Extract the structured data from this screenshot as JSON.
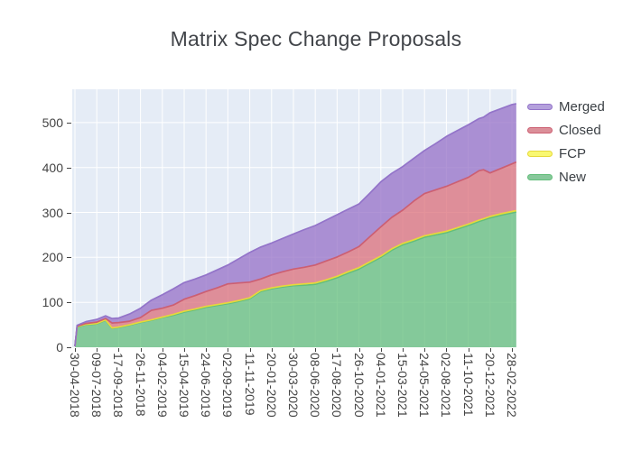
{
  "title": "Matrix Spec Change Proposals",
  "chart_data": {
    "type": "area",
    "stacked": true,
    "title": "Matrix Spec Change Proposals",
    "xlabel": "",
    "ylabel": "",
    "grid": true,
    "legend_position": "right",
    "plot_bg": "#e5ecf6",
    "grid_color": "#ffffff",
    "text_color": "#444444",
    "x_dates": [
      "30-04-2018",
      "07-05-2018",
      "04-06-2018",
      "09-07-2018",
      "06-08-2018",
      "27-08-2018",
      "17-09-2018",
      "22-10-2018",
      "26-11-2018",
      "31-12-2018",
      "04-02-2019",
      "11-03-2019",
      "15-04-2019",
      "20-05-2019",
      "24-06-2019",
      "29-07-2019",
      "02-09-2019",
      "07-10-2019",
      "11-11-2019",
      "16-12-2019",
      "20-01-2020",
      "24-02-2020",
      "30-03-2020",
      "04-05-2020",
      "08-06-2020",
      "13-07-2020",
      "17-08-2020",
      "21-09-2020",
      "26-10-2020",
      "30-11-2020",
      "04-01-2021",
      "08-02-2021",
      "15-03-2021",
      "19-04-2021",
      "24-05-2021",
      "28-06-2021",
      "02-08-2021",
      "06-09-2021",
      "11-10-2021",
      "15-11-2021",
      "29-11-2021",
      "20-12-2021",
      "24-01-2022",
      "28-02-2022",
      "14-03-2022"
    ],
    "series": [
      {
        "name": "New",
        "values": [
          2,
          45,
          50,
          52,
          60,
          42,
          44,
          49,
          55,
          60,
          66,
          71,
          78,
          83,
          89,
          93,
          97,
          102,
          108,
          124,
          130,
          134,
          137,
          138,
          140,
          147,
          155,
          165,
          174,
          187,
          200,
          216,
          228,
          236,
          245,
          250,
          255,
          263,
          271,
          280,
          283,
          288,
          294,
          299,
          301
        ],
        "fill": "rgba(99,190,123,0.75)",
        "line": "#63be7b",
        "swatch": "#87c89b"
      },
      {
        "name": "FCP",
        "values": [
          0,
          1,
          1,
          1,
          1,
          1,
          1,
          1,
          1,
          1,
          1,
          2,
          2,
          2,
          2,
          2,
          2,
          2,
          2,
          2,
          2,
          2,
          2,
          3,
          3,
          3,
          3,
          3,
          3,
          3,
          3,
          3,
          3,
          3,
          3,
          3,
          3,
          3,
          3,
          3,
          3,
          3,
          3,
          3,
          3
        ],
        "fill": "rgba(249,248,113,0.85)",
        "line": "#e6d93a",
        "swatch": "#f9f871"
      },
      {
        "name": "Closed",
        "values": [
          0,
          1,
          2,
          3,
          3,
          11,
          10,
          8,
          10,
          21,
          20,
          21,
          27,
          30,
          33,
          37,
          42,
          39,
          35,
          26,
          29,
          32,
          35,
          37,
          40,
          42,
          43,
          44,
          47,
          56,
          65,
          70,
          74,
          86,
          94,
          97,
          100,
          102,
          104,
          110,
          109,
          97,
          101,
          106,
          108
        ],
        "fill": "rgba(219,111,122,0.75)",
        "line": "#cc5f72",
        "swatch": "#db8f99"
      },
      {
        "name": "Merged",
        "values": [
          0,
          2,
          4,
          6,
          6,
          10,
          10,
          16,
          21,
          23,
          30,
          36,
          37,
          37,
          37,
          40,
          42,
          54,
          66,
          71,
          71,
          74,
          78,
          84,
          88,
          91,
          94,
          95,
          95,
          97,
          100,
          98,
          97,
          95,
          96,
          103,
          111,
          114,
          117,
          116,
          117,
          134,
          133,
          132,
          130
        ],
        "fill": "rgba(149,112,199,0.75)",
        "line": "#9374c9",
        "swatch": "#b4a0dc"
      }
    ],
    "legend_order": [
      "Merged",
      "Closed",
      "FCP",
      "New"
    ],
    "x_tick_labels": [
      "30-04-2018",
      "09-07-2018",
      "17-09-2018",
      "26-11-2018",
      "04-02-2019",
      "15-04-2019",
      "24-06-2019",
      "02-09-2019",
      "11-11-2019",
      "20-01-2020",
      "30-03-2020",
      "08-06-2020",
      "17-08-2020",
      "26-10-2020",
      "04-01-2021",
      "15-03-2021",
      "24-05-2021",
      "02-08-2021",
      "11-10-2021",
      "20-12-2021",
      "28-02-2022"
    ],
    "y_ticks": [
      0,
      100,
      200,
      300,
      400,
      500
    ],
    "ylim": [
      0,
      574
    ]
  }
}
